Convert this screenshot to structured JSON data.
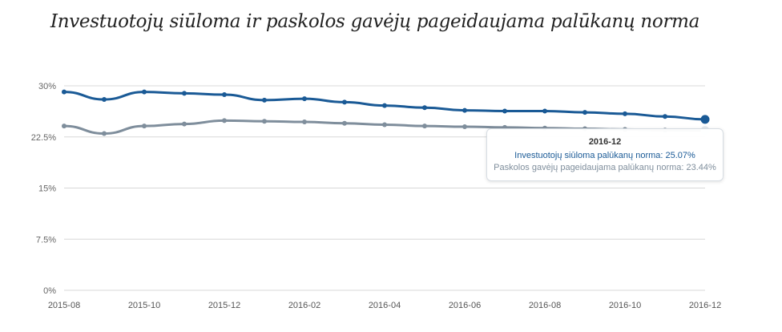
{
  "title": "Investuotojų siūloma ir paskolos gavėjų pageidaujama palūkanų norma",
  "colors": {
    "series1": "#1a5a96",
    "series2": "#7f8e9c",
    "grid": "#d8d8d8"
  },
  "chart_data": {
    "type": "line",
    "title": "Investuotojų siūloma ir paskolos gavėjų pageidaujama palūkanų norma",
    "x": [
      "2015-08",
      "2015-09",
      "2015-10",
      "2015-11",
      "2015-12",
      "2016-01",
      "2016-02",
      "2016-03",
      "2016-04",
      "2016-05",
      "2016-06",
      "2016-07",
      "2016-08",
      "2016-09",
      "2016-10",
      "2016-11",
      "2016-12"
    ],
    "x_tick_labels": [
      "2015-08",
      "2015-10",
      "2015-12",
      "2016-02",
      "2016-04",
      "2016-06",
      "2016-08",
      "2016-10",
      "2016-12"
    ],
    "y_tick_labels": [
      "30%",
      "22.5%",
      "15%",
      "7.5%",
      "0%"
    ],
    "ylim": [
      0,
      30
    ],
    "grid": true,
    "series": [
      {
        "name": "Investuotojų siūloma palūkanų norma",
        "values": [
          29.1,
          28.0,
          29.1,
          28.9,
          28.7,
          27.9,
          28.1,
          27.6,
          27.1,
          26.8,
          26.4,
          26.3,
          26.3,
          26.1,
          25.9,
          25.5,
          25.07
        ]
      },
      {
        "name": "Paskolos gavėjų pageidaujama palūkanų norma",
        "values": [
          24.1,
          23.0,
          24.1,
          24.4,
          24.9,
          24.8,
          24.7,
          24.5,
          24.3,
          24.1,
          24.0,
          23.9,
          23.8,
          23.7,
          23.6,
          23.5,
          23.44
        ]
      }
    ]
  },
  "tooltip": {
    "date": "2016-12",
    "line1": "Investuotojų siūloma palūkanų norma: 25.07%",
    "line2": "Paskolos gavėjų pageidaujama palūkanų norma: 23.44%"
  }
}
